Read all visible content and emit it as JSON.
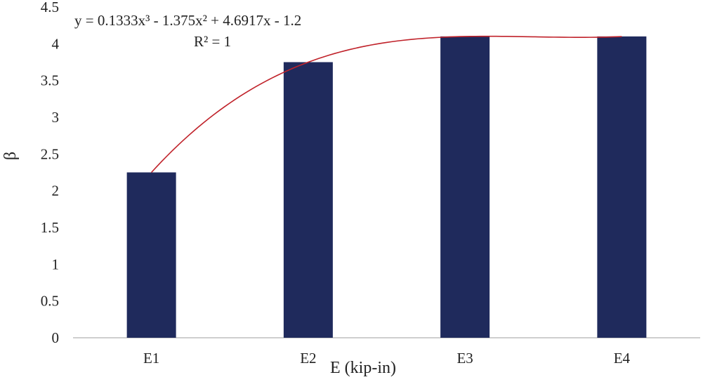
{
  "chart_data": {
    "type": "bar",
    "categories": [
      "E1",
      "E2",
      "E3",
      "E4"
    ],
    "series": [
      {
        "values": [
          2.25,
          3.75,
          4.1,
          4.1
        ]
      }
    ],
    "xlabel": "E (kip-in)",
    "ylabel": "β",
    "ylim": [
      0,
      4.5
    ],
    "yticks": [
      "0",
      "0.5",
      "1",
      "1.5",
      "2",
      "2.5",
      "3",
      "3.5",
      "4",
      "4.5"
    ],
    "grid": false,
    "bar_color": "#1f2a5c",
    "trendline": {
      "type": "polynomial",
      "order": 3,
      "coefficients": [
        0.1333,
        -1.375,
        4.6917,
        -1.2
      ],
      "color": "#c0222a",
      "equation": "y = 0.1333x³ - 1.375x² + 4.6917x - 1.2",
      "r_squared": "R² = 1"
    }
  }
}
